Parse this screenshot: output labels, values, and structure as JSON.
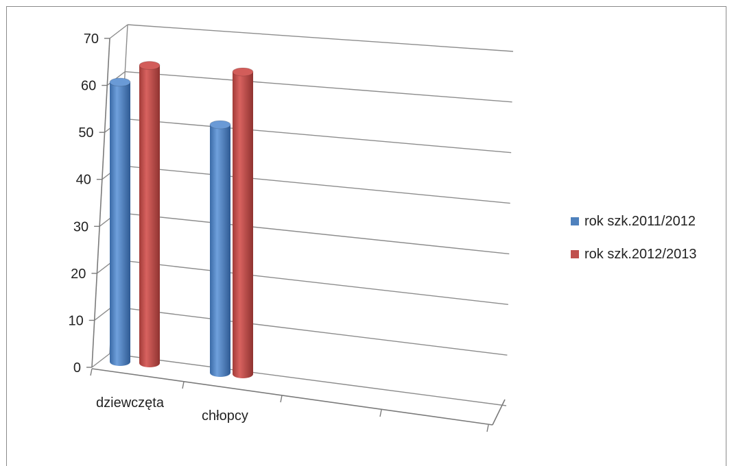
{
  "chart_data": {
    "type": "bar",
    "style": "3d-cylinder",
    "categories": [
      "dziewczęta",
      "chłopcy"
    ],
    "series": [
      {
        "name": "rok szk.2011/2012",
        "values": [
          62,
          55
        ],
        "color": "#4f81bd"
      },
      {
        "name": "rok szk.2012/2013",
        "values": [
          66,
          67
        ],
        "color": "#c0504d"
      }
    ],
    "ylim": [
      0,
      70
    ],
    "yticks": [
      0,
      10,
      20,
      30,
      40,
      50,
      60,
      70
    ],
    "grid": true,
    "legend_position": "right"
  }
}
